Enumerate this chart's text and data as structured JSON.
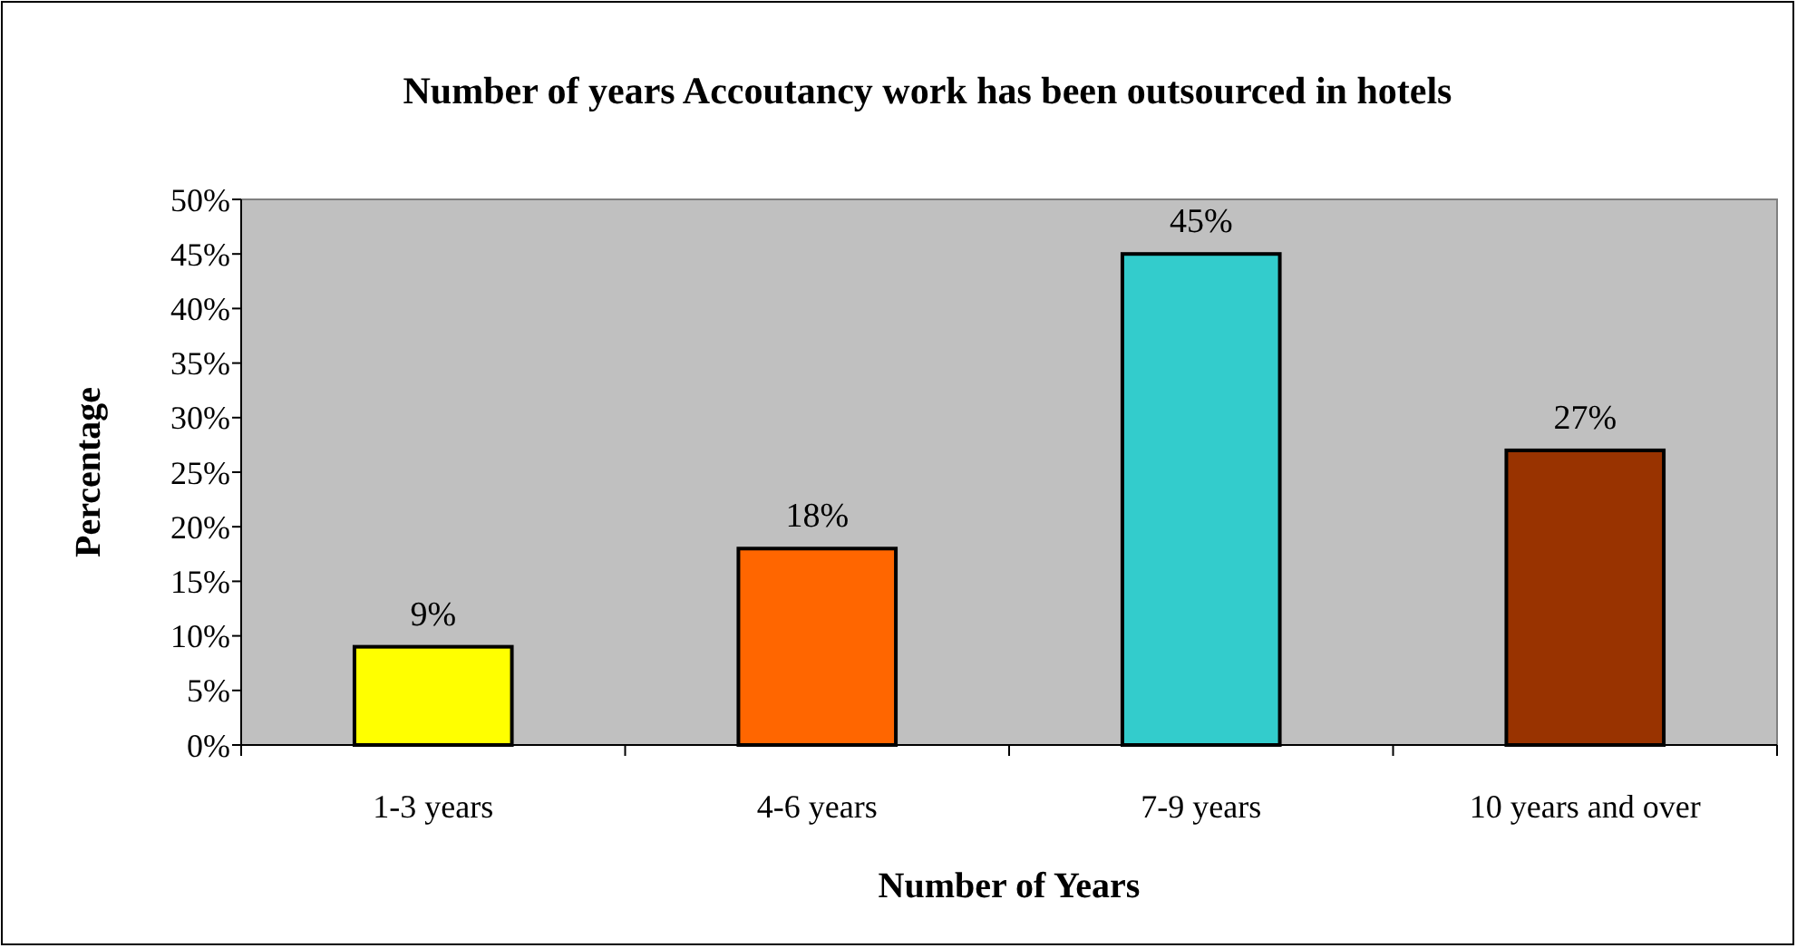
{
  "chart_data": {
    "type": "bar",
    "title": "Number of years Accoutancy work has been outsourced in hotels",
    "xlabel": "Number of Years",
    "ylabel": "Percentage",
    "categories": [
      "1-3 years",
      "4-6 years",
      "7-9 years",
      "10 years and over"
    ],
    "values": [
      9,
      18,
      45,
      27
    ],
    "colors": [
      "#ffff00",
      "#ff6600",
      "#33cccc",
      "#993300"
    ],
    "value_labels": [
      "9%",
      "18%",
      "45%",
      "27%"
    ],
    "ylim": [
      0,
      50
    ],
    "yticks": [
      {
        "value": 0,
        "label": "0%"
      },
      {
        "value": 5,
        "label": "5%"
      },
      {
        "value": 10,
        "label": "10%"
      },
      {
        "value": 15,
        "label": "15%"
      },
      {
        "value": 20,
        "label": "20%"
      },
      {
        "value": 25,
        "label": "25%"
      },
      {
        "value": 30,
        "label": "30%"
      },
      {
        "value": 35,
        "label": "35%"
      },
      {
        "value": 40,
        "label": "40%"
      },
      {
        "value": 45,
        "label": "45%"
      },
      {
        "value": 50,
        "label": "50%"
      }
    ],
    "grid": false
  }
}
